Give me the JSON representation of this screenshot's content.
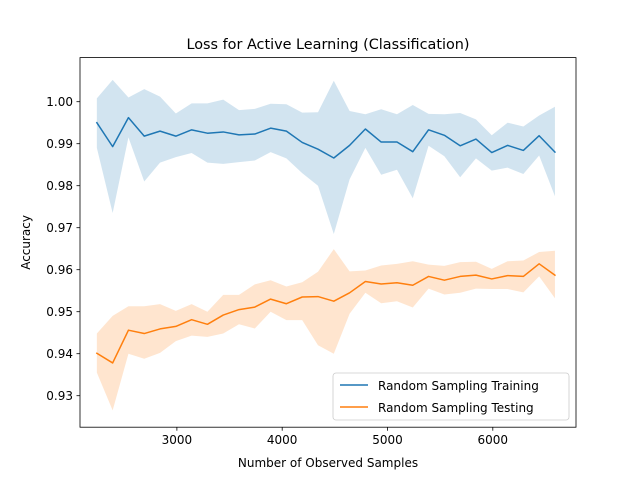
{
  "chart_data": {
    "type": "line",
    "title": "Loss for Active Learning (Classification)",
    "xlabel": "Number of Observed Samples",
    "ylabel": "Accuracy",
    "xlim": [
      2080,
      6790
    ],
    "ylim": [
      0.9225,
      1.0105
    ],
    "xticks": [
      3000,
      4000,
      5000,
      6000
    ],
    "yticks": [
      0.93,
      0.94,
      0.95,
      0.96,
      0.97,
      0.98,
      0.99,
      1.0
    ],
    "ytick_labels": [
      "0.93",
      "0.94",
      "0.95",
      "0.96",
      "0.97",
      "0.98",
      "0.99",
      "1.00"
    ],
    "legend_position": "lower-right",
    "x": [
      2240,
      2390,
      2540,
      2690,
      2840,
      2990,
      3140,
      3290,
      3440,
      3590,
      3740,
      3890,
      4040,
      4190,
      4340,
      4490,
      4640,
      4790,
      4940,
      5090,
      5240,
      5390,
      5540,
      5690,
      5840,
      5990,
      6140,
      6290,
      6440,
      6590
    ],
    "series": [
      {
        "name": "Random Sampling Training",
        "color": "#1f77b4",
        "band_color": "#1f77b4",
        "values": [
          0.995,
          0.9893,
          0.9962,
          0.9918,
          0.993,
          0.9918,
          0.9933,
          0.9925,
          0.9928,
          0.9921,
          0.9923,
          0.9937,
          0.993,
          0.9903,
          0.9887,
          0.9866,
          0.9896,
          0.9935,
          0.9904,
          0.9904,
          0.9881,
          0.9933,
          0.992,
          0.9895,
          0.9911,
          0.9879,
          0.9896,
          0.9884,
          0.9919,
          0.988
        ],
        "lower": [
          0.989,
          0.9735,
          0.9915,
          0.981,
          0.9855,
          0.9868,
          0.9878,
          0.9855,
          0.9852,
          0.9856,
          0.986,
          0.988,
          0.9865,
          0.983,
          0.98,
          0.9685,
          0.9815,
          0.989,
          0.9826,
          0.9838,
          0.977,
          0.9895,
          0.987,
          0.982,
          0.9865,
          0.9836,
          0.9843,
          0.9828,
          0.9872,
          0.9775
        ],
        "upper": [
          1.0008,
          1.0052,
          1.001,
          1.003,
          1.0012,
          0.9972,
          0.9996,
          0.9996,
          1.0005,
          0.998,
          0.9983,
          0.9995,
          0.9994,
          0.9974,
          0.9975,
          1.005,
          0.9978,
          0.997,
          0.9982,
          0.997,
          0.9992,
          0.9971,
          0.997,
          0.9973,
          0.9958,
          0.992,
          0.995,
          0.9941,
          0.9967,
          0.9988
        ]
      },
      {
        "name": "Random Sampling Testing",
        "color": "#ff7f0e",
        "band_color": "#ff7f0e",
        "values": [
          0.9401,
          0.9378,
          0.9456,
          0.9448,
          0.9459,
          0.9465,
          0.9481,
          0.947,
          0.9492,
          0.9505,
          0.9511,
          0.953,
          0.9519,
          0.9535,
          0.9536,
          0.9525,
          0.9545,
          0.9572,
          0.9566,
          0.9569,
          0.9563,
          0.9584,
          0.9575,
          0.9584,
          0.9587,
          0.9578,
          0.9586,
          0.9584,
          0.9614,
          0.9587
        ],
        "lower": [
          0.9355,
          0.9265,
          0.94,
          0.9388,
          0.9402,
          0.943,
          0.9443,
          0.944,
          0.9448,
          0.947,
          0.946,
          0.95,
          0.948,
          0.948,
          0.942,
          0.94,
          0.9495,
          0.9545,
          0.952,
          0.9525,
          0.951,
          0.9555,
          0.9541,
          0.9545,
          0.9555,
          0.9554,
          0.9554,
          0.9546,
          0.9584,
          0.9532
        ],
        "upper": [
          0.9448,
          0.949,
          0.9513,
          0.9513,
          0.9518,
          0.9502,
          0.9518,
          0.95,
          0.954,
          0.954,
          0.9565,
          0.9575,
          0.956,
          0.957,
          0.9595,
          0.9649,
          0.9596,
          0.9598,
          0.961,
          0.9614,
          0.962,
          0.9612,
          0.9609,
          0.9618,
          0.9619,
          0.9602,
          0.962,
          0.9622,
          0.9642,
          0.9645
        ]
      }
    ]
  }
}
